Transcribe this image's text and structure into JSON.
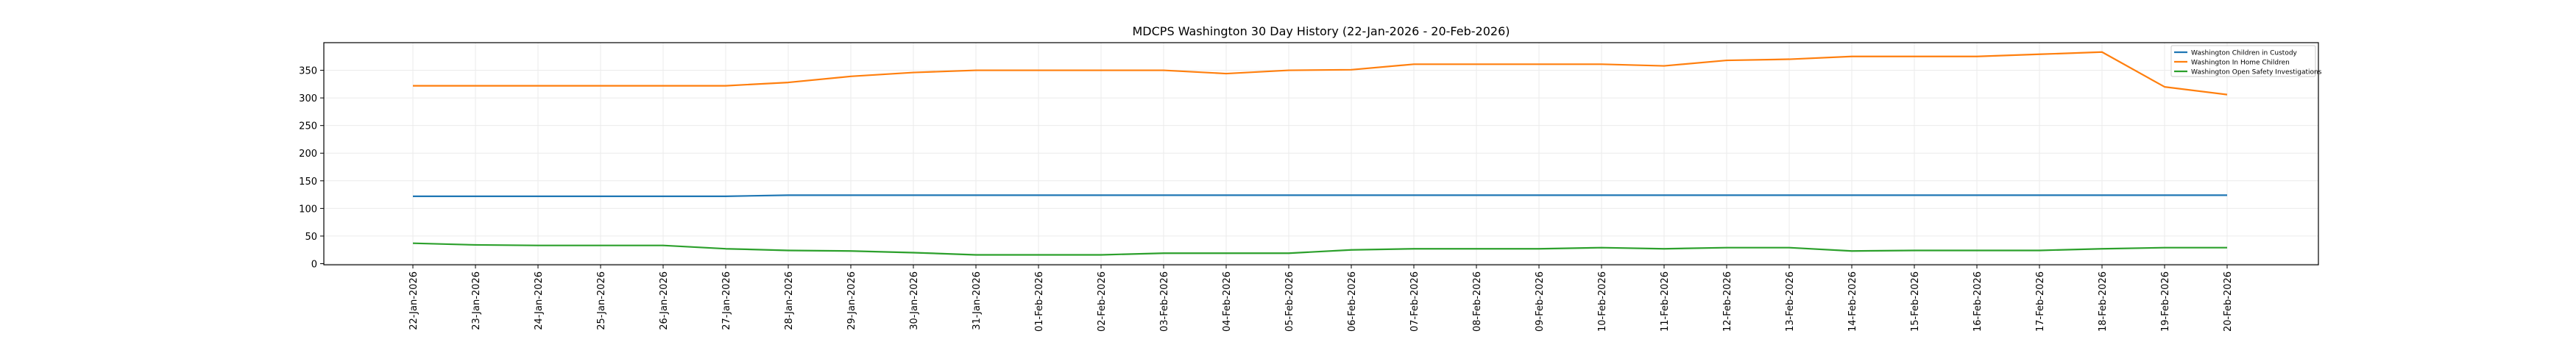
{
  "chart_data": {
    "type": "line",
    "title": "MDCPS Washington 30 Day History (22-Jan-2026 - 20-Feb-2026)",
    "xlabel": "",
    "ylabel": "",
    "ylim": [
      -2,
      400
    ],
    "yticks": [
      0,
      50,
      100,
      150,
      200,
      250,
      300,
      350
    ],
    "grid": true,
    "legend_position": "top-right",
    "categories": [
      "22-Jan-2026",
      "23-Jan-2026",
      "24-Jan-2026",
      "25-Jan-2026",
      "26-Jan-2026",
      "27-Jan-2026",
      "28-Jan-2026",
      "29-Jan-2026",
      "30-Jan-2026",
      "31-Jan-2026",
      "01-Feb-2026",
      "02-Feb-2026",
      "03-Feb-2026",
      "04-Feb-2026",
      "05-Feb-2026",
      "06-Feb-2026",
      "07-Feb-2026",
      "08-Feb-2026",
      "09-Feb-2026",
      "10-Feb-2026",
      "11-Feb-2026",
      "12-Feb-2026",
      "13-Feb-2026",
      "14-Feb-2026",
      "15-Feb-2026",
      "16-Feb-2026",
      "17-Feb-2026",
      "18-Feb-2026",
      "19-Feb-2026",
      "20-Feb-2026"
    ],
    "series": [
      {
        "name": "Washington Children in Custody",
        "color": "#1f77b4",
        "values": [
          122,
          122,
          122,
          122,
          122,
          122,
          124,
          124,
          124,
          124,
          124,
          124,
          124,
          124,
          124,
          124,
          124,
          124,
          124,
          124,
          124,
          124,
          124,
          124,
          124,
          124,
          124,
          124,
          124,
          124
        ]
      },
      {
        "name": "Washington In Home Children",
        "color": "#ff7f0e",
        "values": [
          322,
          322,
          322,
          322,
          322,
          322,
          328,
          339,
          346,
          350,
          350,
          350,
          350,
          344,
          350,
          351,
          361,
          361,
          361,
          361,
          358,
          368,
          370,
          375,
          375,
          375,
          379,
          383,
          320,
          306
        ]
      },
      {
        "name": "Washington Open Safety Investigations",
        "color": "#2ca02c",
        "values": [
          37,
          34,
          33,
          33,
          33,
          27,
          24,
          23,
          20,
          16,
          16,
          16,
          19,
          19,
          19,
          25,
          27,
          27,
          27,
          29,
          27,
          29,
          29,
          23,
          24,
          24,
          24,
          27,
          29,
          29
        ]
      }
    ]
  }
}
